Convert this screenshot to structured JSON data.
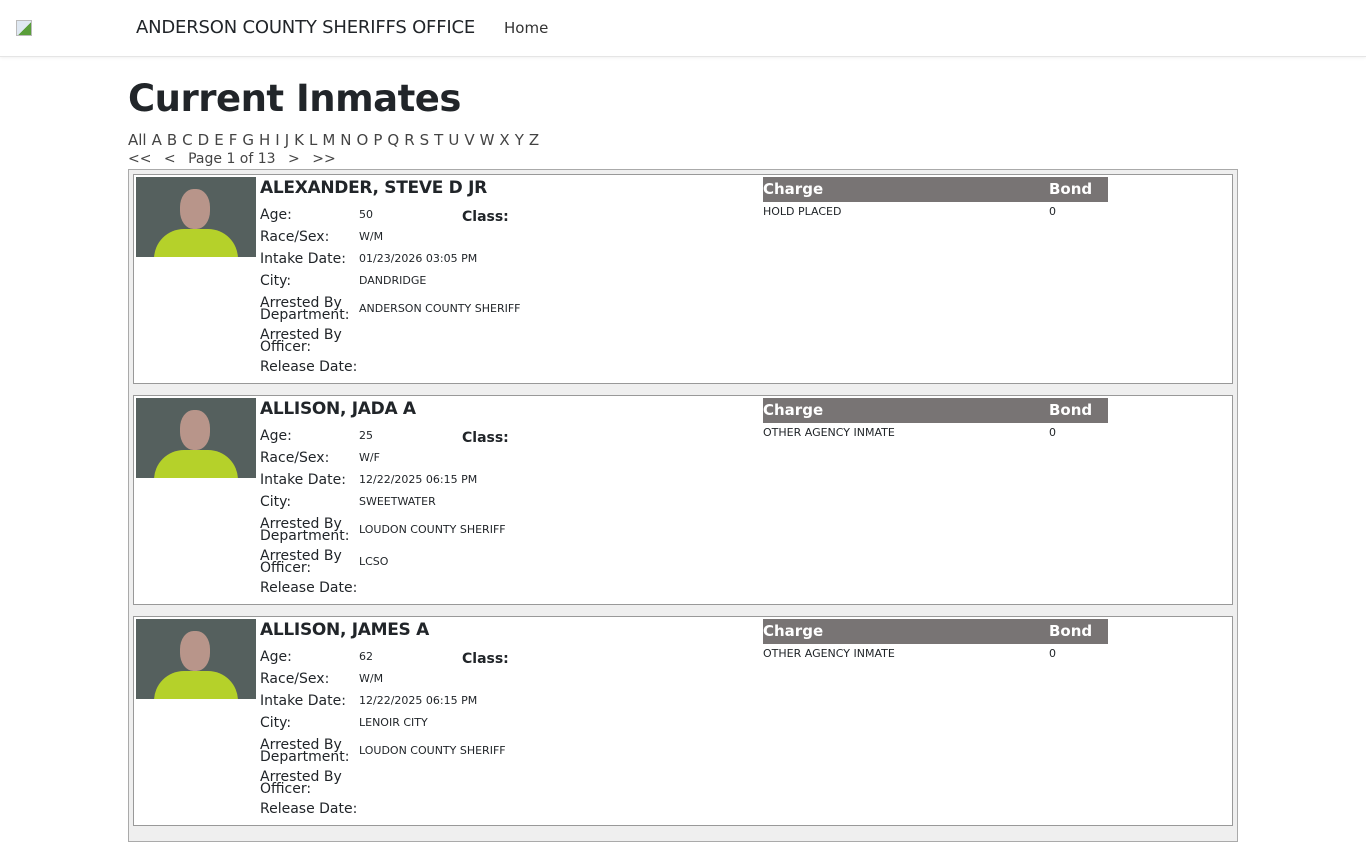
{
  "nav": {
    "brand": "ANDERSON COUNTY SHERIFFS OFFICE",
    "home": "Home"
  },
  "page": {
    "title": "Current Inmates"
  },
  "letters": [
    "All",
    "A",
    "B",
    "C",
    "D",
    "E",
    "F",
    "G",
    "H",
    "I",
    "J",
    "K",
    "L",
    "M",
    "N",
    "O",
    "P",
    "Q",
    "R",
    "S",
    "T",
    "U",
    "V",
    "W",
    "X",
    "Y",
    "Z"
  ],
  "pager": {
    "first": "<<",
    "prev": "<",
    "text": "Page 1 of 13",
    "next": ">",
    "last": ">>"
  },
  "labels": {
    "age": "Age:",
    "class": "Class:",
    "race_sex": "Race/Sex:",
    "intake": "Intake Date:",
    "city": "City:",
    "dept1": "Arrested By",
    "dept2": "Department:",
    "off1": "Arrested By",
    "off2": "Officer:",
    "release": "Release Date:",
    "charge": "Charge",
    "bond": "Bond"
  },
  "inmates": [
    {
      "name": "ALEXANDER, STEVE D JR",
      "age": "50",
      "class": "",
      "race_sex": "W/M",
      "intake": "01/23/2026 03:05 PM",
      "city": "DANDRIDGE",
      "department": "ANDERSON COUNTY SHERIFF",
      "officer": "",
      "release": "",
      "charges": [
        {
          "charge": "HOLD PLACED",
          "bond": "0"
        }
      ]
    },
    {
      "name": "ALLISON, JADA A",
      "age": "25",
      "class": "",
      "race_sex": "W/F",
      "intake": "12/22/2025 06:15 PM",
      "city": "SWEETWATER",
      "department": "LOUDON COUNTY SHERIFF",
      "officer": "LCSO",
      "release": "",
      "charges": [
        {
          "charge": "OTHER AGENCY INMATE",
          "bond": "0"
        }
      ]
    },
    {
      "name": "ALLISON, JAMES A",
      "age": "62",
      "class": "",
      "race_sex": "W/M",
      "intake": "12/22/2025 06:15 PM",
      "city": "LENOIR CITY",
      "department": "LOUDON COUNTY SHERIFF",
      "officer": "",
      "release": "",
      "charges": [
        {
          "charge": "OTHER AGENCY INMATE",
          "bond": "0"
        }
      ]
    }
  ]
}
